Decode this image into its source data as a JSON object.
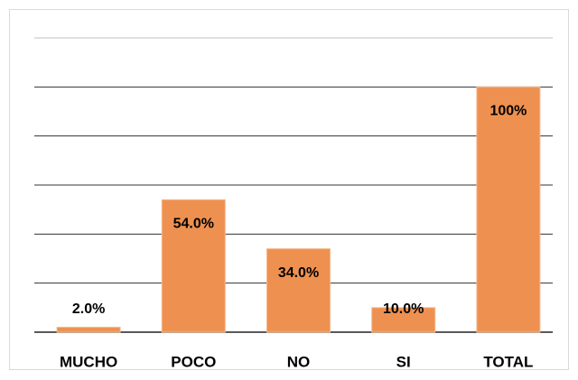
{
  "chart_data": {
    "type": "bar",
    "categories": [
      "MUCHO",
      "POCO",
      "NO",
      "SI",
      "TOTAL"
    ],
    "values": [
      2.0,
      54.0,
      34.0,
      10.0,
      100
    ],
    "value_labels": [
      "2.0%",
      "54.0%",
      "34.0%",
      "10.0%",
      "100%"
    ],
    "color": "#ee9150",
    "ylim": [
      0,
      120
    ],
    "yticks": [
      0,
      20,
      40,
      60,
      80,
      100,
      120
    ],
    "grid": true
  }
}
